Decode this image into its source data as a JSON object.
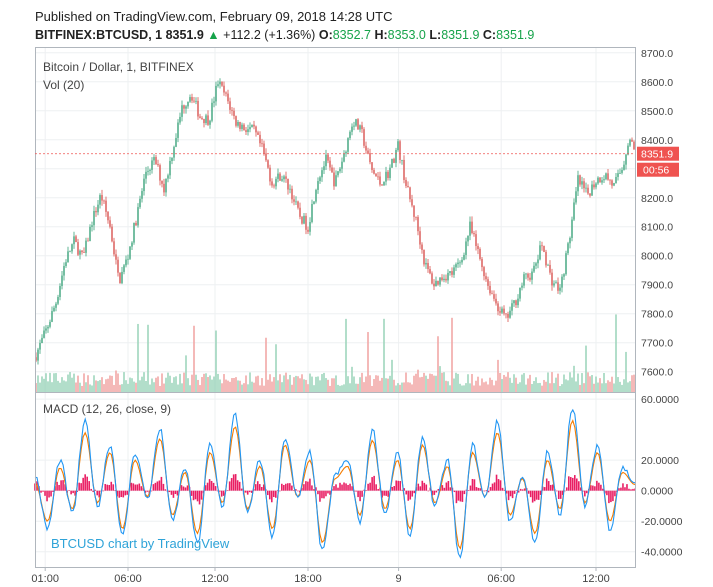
{
  "header": {
    "published": "Published on TradingView.com, February 09, 2018 14:28 UTC",
    "symbol": "BITFINEX:BTCUSD, 1",
    "last": "8351.9",
    "change": "+112.2 (+1.36%)",
    "o_label": "O:",
    "o_value": "8352.7",
    "h_label": "H:",
    "h_value": "8353.0",
    "l_label": "L:",
    "l_value": "8351.9",
    "c_label": "C:",
    "c_value": "8351.9"
  },
  "colors": {
    "up": "#3aa37a",
    "down": "#d9534f",
    "grid": "#eef0f2",
    "macd": "#2196f3",
    "signal": "#f57c00",
    "hist": "#e91e63",
    "price_tag": "#ef5350",
    "watermark": "#2ea3d8"
  },
  "chart_data": [
    {
      "type": "candlestick",
      "title": "Bitcoin / Dollar, 1, BITFINEX",
      "subtitle": "Vol (20)",
      "ylim": [
        7530,
        8720
      ],
      "y_ticks": [
        7600,
        7700,
        7800,
        7900,
        8000,
        8100,
        8200,
        8300,
        8400,
        8500,
        8600,
        8700
      ],
      "y_tick_labels": [
        "7600.0",
        "7700.0",
        "7800.0",
        "7900.0",
        "8000.0",
        "8100.0",
        "8200.0",
        "8300.0",
        "8400.0",
        "8500.0",
        "8600.0",
        "8700.0"
      ],
      "x_tick_labels": [
        "01:00",
        "06:00",
        "12:00",
        "18:00",
        "9",
        "06:00",
        "12:00"
      ],
      "x_tick_pos": [
        0.017,
        0.155,
        0.3,
        0.455,
        0.606,
        0.777,
        0.935
      ],
      "last_price": 8351.9,
      "last_price_label": "8351.9",
      "countdown_label": "00:56",
      "close_path": [
        [
          0.0,
          7650
        ],
        [
          0.02,
          7750
        ],
        [
          0.035,
          7840
        ],
        [
          0.05,
          7980
        ],
        [
          0.065,
          8050
        ],
        [
          0.08,
          7990
        ],
        [
          0.095,
          8120
        ],
        [
          0.11,
          8210
        ],
        [
          0.125,
          8100
        ],
        [
          0.14,
          7910
        ],
        [
          0.155,
          8000
        ],
        [
          0.17,
          8140
        ],
        [
          0.185,
          8290
        ],
        [
          0.2,
          8330
        ],
        [
          0.215,
          8230
        ],
        [
          0.23,
          8370
        ],
        [
          0.245,
          8510
        ],
        [
          0.26,
          8560
        ],
        [
          0.275,
          8480
        ],
        [
          0.29,
          8470
        ],
        [
          0.305,
          8600
        ],
        [
          0.32,
          8540
        ],
        [
          0.335,
          8460
        ],
        [
          0.35,
          8440
        ],
        [
          0.365,
          8430
        ],
        [
          0.38,
          8360
        ],
        [
          0.395,
          8250
        ],
        [
          0.41,
          8280
        ],
        [
          0.425,
          8230
        ],
        [
          0.44,
          8140
        ],
        [
          0.455,
          8100
        ],
        [
          0.47,
          8260
        ],
        [
          0.485,
          8330
        ],
        [
          0.5,
          8250
        ],
        [
          0.515,
          8350
        ],
        [
          0.53,
          8470
        ],
        [
          0.545,
          8420
        ],
        [
          0.56,
          8300
        ],
        [
          0.575,
          8250
        ],
        [
          0.59,
          8290
        ],
        [
          0.605,
          8380
        ],
        [
          0.62,
          8230
        ],
        [
          0.635,
          8120
        ],
        [
          0.65,
          7970
        ],
        [
          0.665,
          7900
        ],
        [
          0.68,
          7930
        ],
        [
          0.695,
          7940
        ],
        [
          0.71,
          7980
        ],
        [
          0.725,
          8100
        ],
        [
          0.74,
          8000
        ],
        [
          0.755,
          7900
        ],
        [
          0.77,
          7830
        ],
        [
          0.785,
          7780
        ],
        [
          0.8,
          7840
        ],
        [
          0.815,
          7920
        ],
        [
          0.83,
          7940
        ],
        [
          0.845,
          8040
        ],
        [
          0.86,
          7920
        ],
        [
          0.875,
          7880
        ],
        [
          0.89,
          8050
        ],
        [
          0.905,
          8260
        ],
        [
          0.92,
          8210
        ],
        [
          0.935,
          8260
        ],
        [
          0.95,
          8280
        ],
        [
          0.965,
          8240
        ],
        [
          0.98,
          8310
        ],
        [
          0.99,
          8410
        ],
        [
          1.0,
          8352
        ]
      ]
    },
    {
      "type": "line",
      "title": "MACD (12, 26, close, 9)",
      "ylim": [
        -50,
        64
      ],
      "y_ticks": [
        -40,
        -20,
        0,
        20,
        60
      ],
      "y_tick_labels": [
        "-40.0000",
        "-20.0000",
        "0.0000",
        "20.0000",
        "60.0000"
      ],
      "series": [
        {
          "values": [
            10,
            -25,
            20,
            -15,
            45,
            -10,
            30,
            -30,
            25,
            -5,
            40,
            -20,
            15,
            -35,
            30,
            -10,
            50,
            -15,
            20,
            -30,
            35,
            -5,
            25,
            -40,
            10,
            20,
            -20,
            40,
            -15,
            25,
            -30,
            35,
            -10,
            20,
            -45,
            30,
            -5,
            45,
            -20,
            10,
            -35,
            25,
            -15,
            55,
            -10,
            30,
            -25,
            15,
            5
          ]
        },
        {
          "values": [
            5,
            -20,
            15,
            -12,
            38,
            -8,
            25,
            -25,
            20,
            -4,
            34,
            -16,
            12,
            -28,
            25,
            -8,
            42,
            -12,
            16,
            -25,
            30,
            -4,
            20,
            -34,
            8,
            16,
            -16,
            33,
            -12,
            20,
            -25,
            30,
            -8,
            16,
            -38,
            25,
            -4,
            38,
            -16,
            8,
            -28,
            20,
            -12,
            46,
            -8,
            25,
            -20,
            12,
            4
          ]
        }
      ]
    }
  ],
  "watermark": "BTCUSD chart by TradingView"
}
